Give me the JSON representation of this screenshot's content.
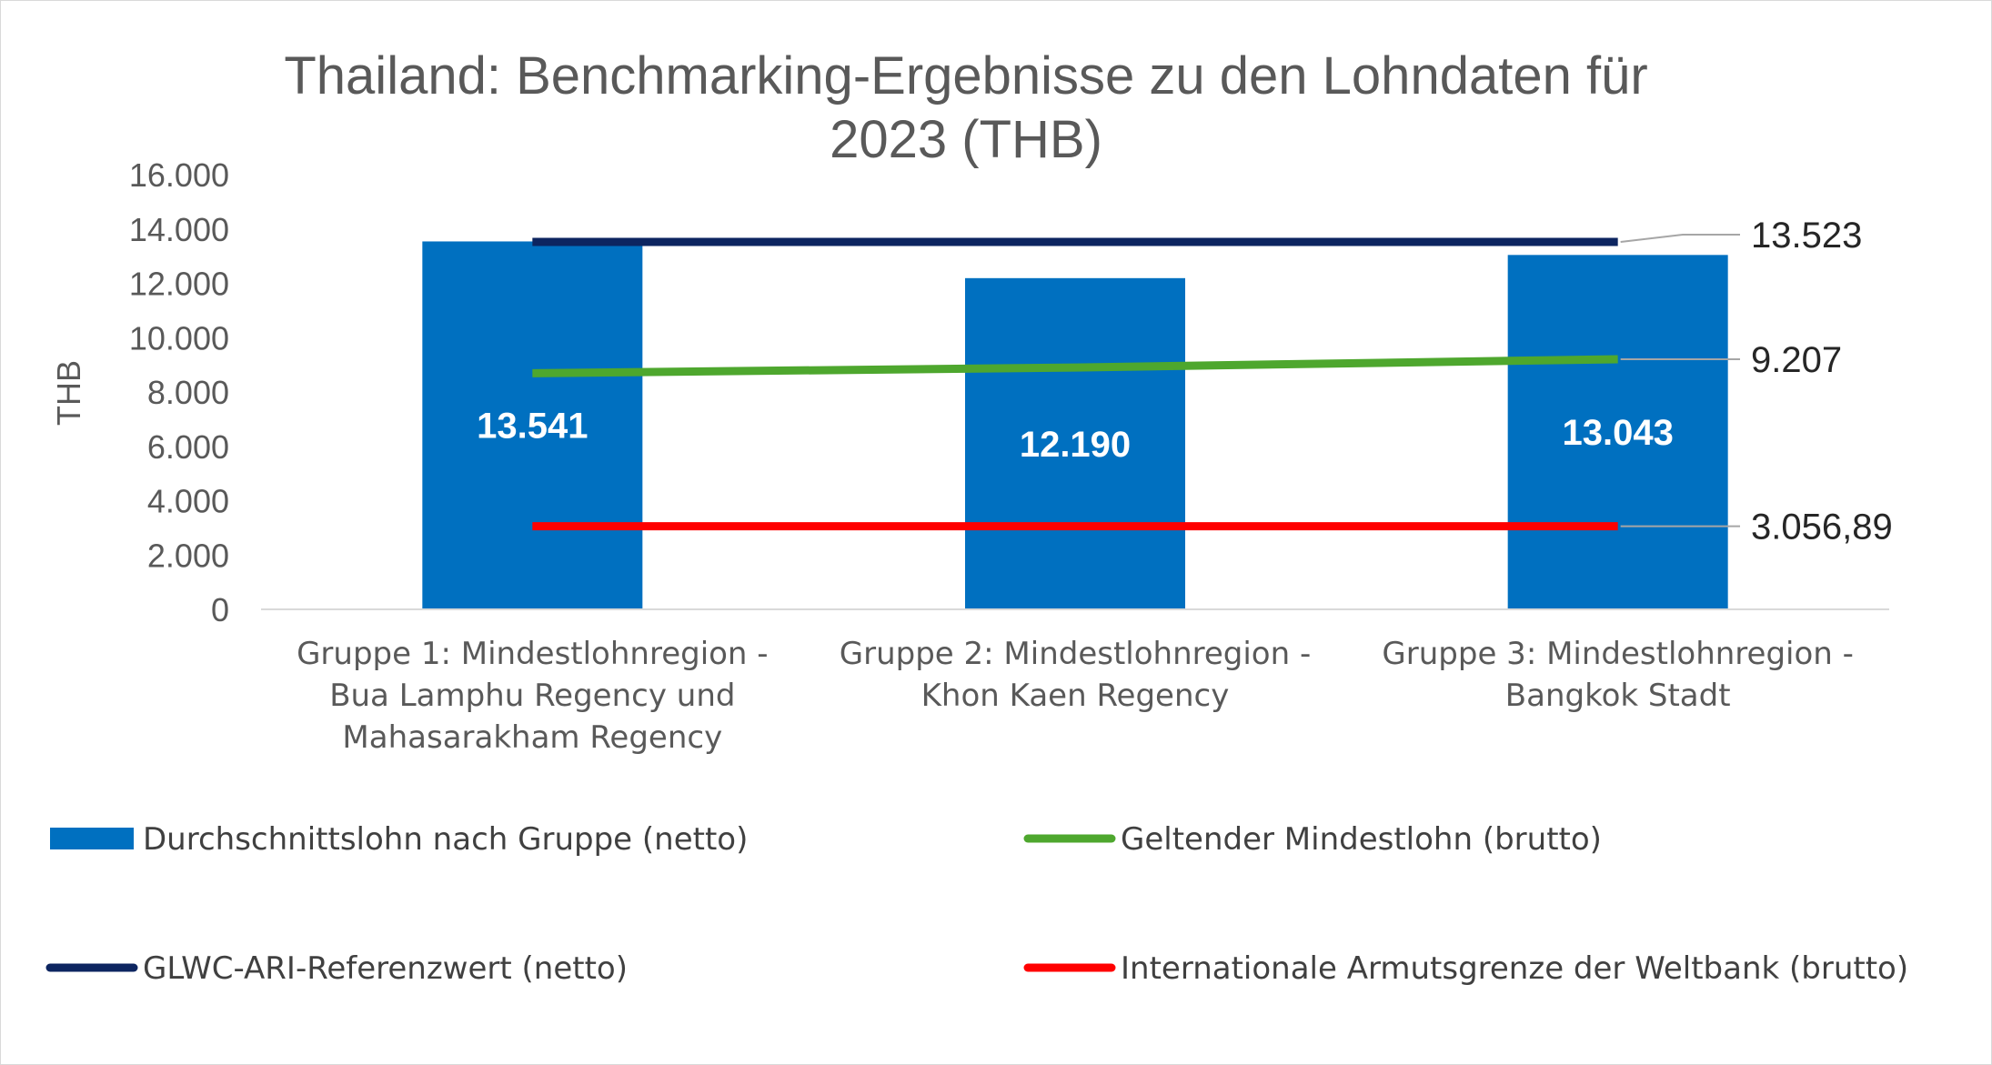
{
  "chart_data": {
    "type": "bar",
    "title_lines": [
      "Thailand: Benchmarking-Ergebnisse zu den Lohndaten für",
      "2023 (THB)"
    ],
    "ylabel": "THB",
    "ylim": [
      0,
      16000
    ],
    "yticks": [
      0,
      2000,
      4000,
      6000,
      8000,
      10000,
      12000,
      14000,
      16000
    ],
    "ytick_labels": [
      "0",
      "2.000",
      "4.000",
      "6.000",
      "8.000",
      "10.000",
      "12.000",
      "14.000",
      "16.000"
    ],
    "categories": [
      [
        "Gruppe 1: Mindestlohnregion -",
        "Bua Lamphu Regency und",
        "Mahasarakham Regency"
      ],
      [
        "Gruppe 2: Mindestlohnregion -",
        "Khon Kaen Regency"
      ],
      [
        "Gruppe 3: Mindestlohnregion -",
        "Bangkok Stadt"
      ]
    ],
    "series": [
      {
        "name": "Durchschnittslohn nach Gruppe (netto)",
        "kind": "bar",
        "color": "#0070c0",
        "values": [
          13541,
          12190,
          13043
        ],
        "labels": [
          "13.541",
          "12.190",
          "13.043"
        ]
      },
      {
        "name": "Geltender Mindestlohn (brutto)",
        "kind": "line",
        "color": "#4ea72e",
        "values": [
          8690,
          8900,
          9207
        ],
        "end_label": "9.207"
      },
      {
        "name": "GLWC-ARI-Referenzwert (netto)",
        "kind": "line",
        "color": "#0d2560",
        "values": [
          13523,
          13523,
          13523
        ],
        "end_label": "13.523"
      },
      {
        "name": "Internationale Armutsgrenze der Weltbank (brutto)",
        "kind": "line",
        "color": "#ff0000",
        "values": [
          3056.89,
          3056.89,
          3056.89
        ],
        "end_label": "3.056,89"
      }
    ],
    "legend": {
      "position": "bottom",
      "items": [
        {
          "label": "Durchschnittslohn nach Gruppe (netto)",
          "kind": "bar",
          "color": "#0070c0"
        },
        {
          "label": "Geltender Mindestlohn (brutto)",
          "kind": "line",
          "color": "#4ea72e"
        },
        {
          "label": "GLWC-ARI-Referenzwert (netto)",
          "kind": "line",
          "color": "#0d2560"
        },
        {
          "label": "Internationale Armutsgrenze der Weltbank (brutto)",
          "kind": "line",
          "color": "#ff0000"
        }
      ]
    },
    "grid": false,
    "axis_color": "#d9d9d9",
    "leader_color": "#a6a6a6"
  }
}
